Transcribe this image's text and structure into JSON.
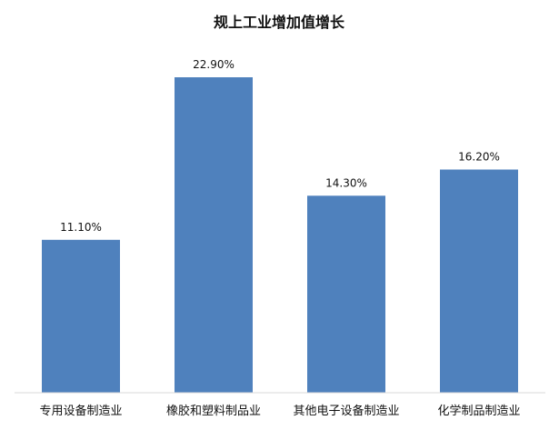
{
  "chart_data": {
    "type": "bar",
    "title": "规上工业增加值增长",
    "categories": [
      "专用设备制造业",
      "橡胶和塑料制品业",
      "其他电子设备制造业",
      "化学制品制造业"
    ],
    "values": [
      11.1,
      22.9,
      14.3,
      16.2
    ],
    "value_labels": [
      "11.10%",
      "22.90%",
      "14.30%",
      "16.20%"
    ],
    "ylim": [
      0,
      25
    ],
    "grid": false,
    "legend": "none",
    "bar_color": "#4F81BD",
    "axis_line_color": "#D9D9D9"
  }
}
